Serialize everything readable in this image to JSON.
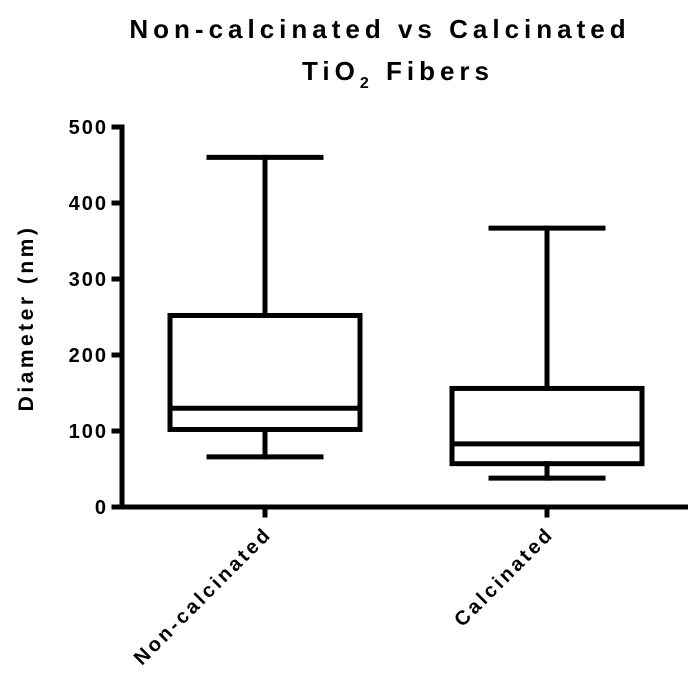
{
  "chart_data": {
    "type": "box",
    "title_line1": "Non-calcinated vs Calcinated",
    "title_line2_main": "TiO",
    "title_line2_sub": "2",
    "title_line2_end": " Fibers",
    "xlabel": "",
    "ylabel": "Diameter (nm)",
    "ylim": [
      0,
      500
    ],
    "yticks": [
      0,
      100,
      200,
      300,
      400,
      500
    ],
    "grid": false,
    "categories": [
      "Non-calcinated",
      "Calcinated"
    ],
    "boxes": [
      {
        "category": "Non-calcinated",
        "min": 66,
        "q1": 102,
        "median": 130,
        "q3": 252,
        "max": 460
      },
      {
        "category": "Calcinated",
        "min": 38,
        "q1": 57,
        "median": 83,
        "q3": 156,
        "max": 367
      }
    ],
    "colors": {
      "stroke": "#000000",
      "background": "#ffffff"
    }
  }
}
